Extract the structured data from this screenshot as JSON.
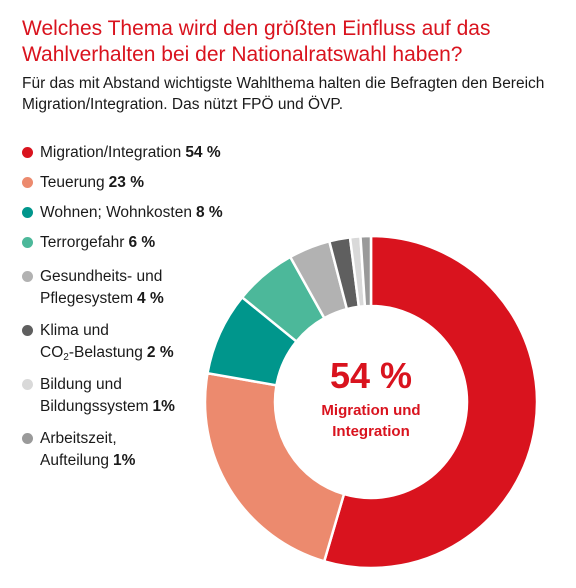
{
  "chart_data": {
    "type": "pie",
    "title": "Welches Thema wird den größten Einfluss auf das Wahlverhalten bei der Nationalratswahl haben?",
    "subtitle": "Für das mit Abstand wichtigste Wahlthema halten die Befragten den Bereich Migration/Integration. Das nützt FPÖ und ÖVP.",
    "series": [
      {
        "label_lines": [
          "Migration/Integration"
        ],
        "pct_label": "54 %",
        "value": 54,
        "color": "#d9131e"
      },
      {
        "label_lines": [
          "Teuerung"
        ],
        "pct_label": "23 %",
        "value": 23,
        "color": "#ec8a6e"
      },
      {
        "label_lines": [
          "Wohnen; Wohnkosten"
        ],
        "pct_label": "8 %",
        "value": 8,
        "color": "#00968c"
      },
      {
        "label_lines": [
          "Terrorgefahr"
        ],
        "pct_label": "6 %",
        "value": 6,
        "color": "#4cb89a"
      },
      {
        "label_lines": [
          "Gesundheits- und",
          "Pflegesystem"
        ],
        "pct_label": "4 %",
        "value": 4,
        "color": "#b2b2b2"
      },
      {
        "label_lines": [
          "Klima und",
          "CO2-Belastung"
        ],
        "pct_label": "2 %",
        "value": 2,
        "color": "#5f5f5f"
      },
      {
        "label_lines": [
          "Bildung und",
          "Bildungssystem"
        ],
        "pct_label": "1%",
        "value": 1,
        "color": "#d9d9d9"
      },
      {
        "label_lines": [
          "Arbeitszeit,",
          "Aufteilung"
        ],
        "pct_label": "1%",
        "value": 1,
        "color": "#9a9a9a"
      }
    ],
    "center_value": "54 %",
    "center_label_lines": [
      "Migration und",
      "Integration"
    ],
    "legend_placement": "left"
  }
}
